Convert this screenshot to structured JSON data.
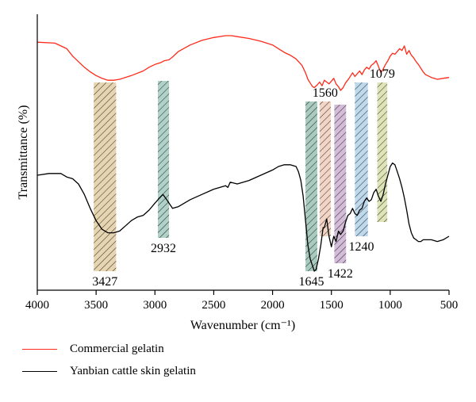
{
  "chart_data": {
    "type": "line",
    "xlabel": "Wavenumber (cm⁻¹)",
    "ylabel": "Transmittance (%)",
    "xlim": [
      4000,
      500
    ],
    "x_ticks": [
      "4000",
      "3500",
      "3000",
      "2500",
      "2000",
      "1500",
      "1000",
      "500"
    ],
    "y_scale": "arbitrary",
    "grid": false,
    "legend": "bottom, below plot",
    "series": [
      {
        "name": "Commercial gelatin",
        "color": "#ff2a1a",
        "x": [
          4000,
          3850,
          3750,
          3700,
          3650,
          3600,
          3550,
          3500,
          3450,
          3400,
          3350,
          3300,
          3200,
          3100,
          3050,
          3000,
          2950,
          2920,
          2880,
          2850,
          2800,
          2700,
          2600,
          2500,
          2400,
          2350,
          2300,
          2200,
          2100,
          2000,
          1950,
          1900,
          1850,
          1800,
          1750,
          1720,
          1700,
          1680,
          1660,
          1645,
          1620,
          1600,
          1580,
          1560,
          1540,
          1520,
          1500,
          1480,
          1460,
          1440,
          1422,
          1400,
          1380,
          1350,
          1320,
          1300,
          1280,
          1260,
          1240,
          1220,
          1200,
          1180,
          1160,
          1140,
          1120,
          1100,
          1079,
          1060,
          1040,
          1020,
          1000,
          980,
          960,
          940,
          920,
          900,
          880,
          860,
          840,
          820,
          800,
          780,
          760,
          740,
          720,
          700,
          650,
          600,
          550,
          500
        ],
        "y": [
          93,
          92,
          86,
          78,
          72,
          66,
          61,
          57,
          54,
          52,
          52,
          53,
          57,
          62,
          66,
          69,
          71,
          73,
          74,
          77,
          83,
          90,
          95,
          98,
          100,
          100,
          99,
          97,
          94,
          90,
          86,
          82,
          79,
          75,
          68,
          60,
          53,
          49,
          45,
          44,
          47,
          50,
          46,
          52,
          50,
          48,
          51,
          54,
          48,
          45,
          41,
          44,
          49,
          54,
          60,
          56,
          59,
          62,
          58,
          63,
          66,
          64,
          68,
          70,
          73,
          67,
          60,
          64,
          69,
          73,
          78,
          81,
          80,
          83,
          86,
          84,
          89,
          80,
          84,
          79,
          76,
          72,
          69,
          65,
          61,
          58,
          55,
          53,
          54,
          55
        ]
      },
      {
        "name": "Yanbian cattle skin gelatin",
        "color": "#000000",
        "x": [
          4000,
          3900,
          3800,
          3750,
          3700,
          3650,
          3600,
          3550,
          3500,
          3450,
          3400,
          3350,
          3300,
          3250,
          3200,
          3150,
          3100,
          3050,
          3000,
          2960,
          2932,
          2900,
          2850,
          2800,
          2700,
          2600,
          2500,
          2400,
          2380,
          2360,
          2300,
          2200,
          2100,
          2000,
          1950,
          1900,
          1850,
          1800,
          1780,
          1760,
          1740,
          1720,
          1700,
          1680,
          1660,
          1645,
          1630,
          1610,
          1590,
          1570,
          1560,
          1540,
          1520,
          1500,
          1480,
          1460,
          1440,
          1422,
          1400,
          1380,
          1360,
          1340,
          1320,
          1300,
          1280,
          1260,
          1240,
          1220,
          1200,
          1180,
          1160,
          1140,
          1120,
          1100,
          1079,
          1060,
          1040,
          1020,
          1000,
          980,
          960,
          940,
          920,
          900,
          880,
          860,
          840,
          820,
          800,
          780,
          760,
          740,
          720,
          700,
          650,
          600,
          550,
          500
        ],
        "y": [
          -5,
          -4,
          -4,
          -6,
          -7,
          -10,
          -16,
          -24,
          -31,
          -36,
          -38,
          -38,
          -37,
          -34,
          -31,
          -29,
          -28,
          -25,
          -21,
          -18,
          -16,
          -19,
          -24,
          -23,
          -19,
          -16,
          -13,
          -11,
          -12,
          -9,
          -10,
          -8,
          -5,
          -2,
          0,
          1,
          1,
          0,
          -3,
          -8,
          -17,
          -31,
          -45,
          -53,
          -57,
          -60,
          -59,
          -53,
          -45,
          -35,
          -35,
          -30,
          -40,
          -46,
          -40,
          -43,
          -37,
          -39,
          -37,
          -32,
          -28,
          -27,
          -24,
          -27,
          -28,
          -25,
          -24,
          -20,
          -18,
          -20,
          -19,
          -15,
          -13,
          -17,
          -20,
          -16,
          -10,
          -5,
          0,
          2,
          1,
          -3,
          -7,
          -12,
          -18,
          -25,
          -33,
          -38,
          -41,
          -42,
          -43,
          -43,
          -42,
          -42,
          -42,
          -43,
          -42,
          -40
        ]
      }
    ],
    "bands": [
      {
        "label": "3427",
        "x_from": 3520,
        "x_to": 3330,
        "color": "#c8a251",
        "label_pos": "below"
      },
      {
        "label": "2932",
        "x_from": 2975,
        "x_to": 2880,
        "color": "#4d9a86",
        "label_pos": "below"
      },
      {
        "label": "1645",
        "x_from": 1720,
        "x_to": 1620,
        "color": "#3e8a72",
        "label_pos": "below"
      },
      {
        "label": "1560",
        "x_from": 1600,
        "x_to": 1505,
        "color": "#e4a37e",
        "label_pos": "above"
      },
      {
        "label": "1422",
        "x_from": 1475,
        "x_to": 1375,
        "color": "#9b6ba8",
        "label_pos": "below"
      },
      {
        "label": "1240",
        "x_from": 1300,
        "x_to": 1190,
        "color": "#6fa8d6",
        "label_pos": "below"
      },
      {
        "label": "1079",
        "x_from": 1110,
        "x_to": 1025,
        "color": "#b7c460",
        "label_pos": "above"
      }
    ]
  }
}
